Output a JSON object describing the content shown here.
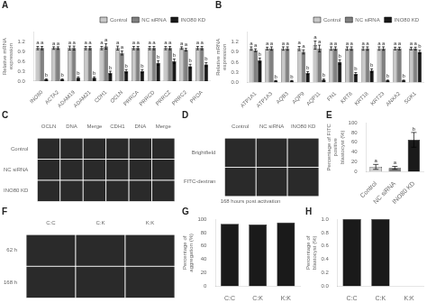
{
  "chart_data": [
    {
      "type": "bar",
      "title": "A",
      "categories": [
        "INO80",
        "ACTA2",
        "ADAM19",
        "ADAM21",
        "CDH1",
        "OCLN",
        "PRRCA",
        "PRRCD",
        "PRRCZ",
        "PRRC2",
        "PROA"
      ],
      "series": [
        {
          "name": "Control",
          "color": "#c8c8c8",
          "values": [
            1.0,
            1.0,
            1.0,
            1.0,
            1.0,
            1.0,
            1.0,
            1.0,
            1.0,
            1.0,
            1.0
          ],
          "errors": [
            0.05,
            0.04,
            0.06,
            0.05,
            0.05,
            0.06,
            0.05,
            0.05,
            0.05,
            0.04,
            0.05
          ],
          "annotations": [
            "a",
            "a",
            "a",
            "a",
            "a",
            "a",
            "a",
            "a",
            "a",
            "a",
            "a"
          ]
        },
        {
          "name": "NC siRNA",
          "color": "#808080",
          "values": [
            1.0,
            1.0,
            1.0,
            1.0,
            1.05,
            0.85,
            1.0,
            1.0,
            1.0,
            0.95,
            1.0
          ],
          "errors": [
            0.05,
            0.04,
            0.06,
            0.05,
            0.08,
            0.06,
            0.05,
            0.05,
            0.05,
            0.04,
            0.05
          ],
          "annotations": [
            "a",
            "a",
            "a",
            "a",
            "a",
            "a",
            "a",
            "a",
            "a",
            "a",
            "a"
          ]
        },
        {
          "name": "INO80 KD",
          "color": "#1a1a1a",
          "values": [
            0.05,
            0.05,
            0.1,
            0.1,
            0.25,
            0.3,
            0.3,
            0.55,
            0.6,
            0.45,
            0.5
          ],
          "errors": [
            0.02,
            0.02,
            0.03,
            0.03,
            0.05,
            0.05,
            0.05,
            0.07,
            0.07,
            0.06,
            0.06
          ],
          "annotations": [
            "b",
            "b",
            "b",
            "b",
            "b",
            "b",
            "b",
            "b",
            "b",
            "b",
            "b"
          ]
        }
      ],
      "ylabel": "Relative mRNA expression",
      "ylim": [
        0,
        1.5
      ],
      "yticks": [
        {
          "value": 0,
          "label": "0.0"
        },
        0.3,
        0.6,
        0.9,
        1.2
      ],
      "grid": false,
      "legend": "upper right"
    },
    {
      "type": "bar",
      "title": "B",
      "categories": [
        "ATP1A1",
        "ATP1A3",
        "AQB3",
        "AQP9",
        "AQP11",
        "FN1",
        "KRT8",
        "KRT18",
        "KRT23",
        "ANXA2",
        "SGK1"
      ],
      "series": [
        {
          "name": "Control",
          "color": "#c8c8c8",
          "values": [
            1.0,
            1.0,
            1.0,
            1.0,
            1.1,
            1.0,
            1.0,
            1.0,
            1.0,
            1.0,
            1.0
          ],
          "errors": [
            0.05,
            0.04,
            0.05,
            0.06,
            0.12,
            0.05,
            0.05,
            0.05,
            0.05,
            0.04,
            0.04
          ],
          "annotations": [
            "a",
            "a",
            "a",
            "a",
            "a",
            "a",
            "a",
            "a",
            "a",
            "a",
            "a"
          ]
        },
        {
          "name": "NC siRNA",
          "color": "#808080",
          "values": [
            0.95,
            1.0,
            1.0,
            0.9,
            1.0,
            1.0,
            1.0,
            1.0,
            1.0,
            1.0,
            1.0
          ],
          "errors": [
            0.04,
            0.05,
            0.05,
            0.06,
            0.1,
            0.05,
            0.05,
            0.05,
            0.05,
            0.04,
            0.04
          ],
          "annotations": [
            "a",
            "a",
            "a",
            "a",
            "a",
            "a",
            "a",
            "a",
            "a",
            "a",
            "a"
          ]
        },
        {
          "name": "INO80 KD",
          "color": "#1a1a1a",
          "values": [
            0.65,
            0.05,
            0.05,
            0.28,
            0.08,
            0.6,
            0.25,
            0.35,
            0.06,
            0.06,
            0.9
          ],
          "errors": [
            0.07,
            0.01,
            0.01,
            0.04,
            0.02,
            0.07,
            0.04,
            0.05,
            0.01,
            0.01,
            0.05
          ],
          "annotations": [
            "b",
            "b",
            "b",
            "b",
            "b",
            "b",
            "b",
            "b",
            "b",
            "b",
            "b"
          ]
        }
      ],
      "ylabel": "Relative mRNA expression",
      "ylim": [
        0,
        1.5
      ],
      "yticks": [
        {
          "value": 0,
          "label": "0.0"
        },
        0.3,
        0.6,
        0.9,
        1.2
      ],
      "grid": false,
      "legend": "upper right"
    },
    {
      "type": "image",
      "title": "C",
      "categories": [
        "OCLN",
        "DNA",
        "Merge",
        "CDH1",
        "DNA",
        "Merge"
      ],
      "annotations": [
        "Control",
        "NC siRNA",
        "INO80 KD"
      ]
    },
    {
      "type": "image",
      "title": "D",
      "categories": [
        "Control",
        "NC siRNA",
        "INO80 KD"
      ],
      "annotations": [
        "Brightfield",
        "FITC-dextran"
      ],
      "subtitle": "168 hours post activation"
    },
    {
      "type": "bar",
      "title": "E",
      "categories": [
        "Control",
        "NC siRNA",
        "INO80 KD"
      ],
      "values": [
        10,
        8,
        65
      ],
      "errors": [
        5,
        3,
        15
      ],
      "annotations": [
        "a",
        "a",
        "b"
      ],
      "colors": [
        "#d3d3d3",
        "#808080",
        "#1a1a1a"
      ],
      "ylabel": "Percentage of FITC positive\nblastocyst (%)",
      "ylim": [
        0,
        100
      ],
      "yticks": [
        0,
        20,
        40,
        60,
        80,
        100
      ],
      "grid": false
    },
    {
      "type": "image",
      "title": "F",
      "categories": [
        "C:C",
        "C:K",
        "K:K"
      ],
      "annotations": [
        "62 h",
        "168 h"
      ]
    },
    {
      "type": "bar",
      "title": "G",
      "categories": [
        "C:C",
        "C:K",
        "K:K"
      ],
      "values": [
        93,
        92,
        95
      ],
      "color": "#1a1a1a",
      "ylabel": "Percentage of aggregation (%)",
      "ylim": [
        0,
        100
      ],
      "yticks": [
        0,
        20,
        40,
        60,
        80,
        100
      ],
      "grid": false
    },
    {
      "type": "bar",
      "title": "H",
      "categories": [
        "C:C",
        "C:K",
        "K:K"
      ],
      "values": [
        1.0,
        1.0,
        0.0
      ],
      "color": "#1a1a1a",
      "ylabel": "Percentage of blastocyst (%)",
      "ylim": [
        0,
        1
      ],
      "yticks": [
        {
          "value": 0,
          "label": "0.0"
        },
        0.2,
        0.4,
        0.6,
        0.8,
        {
          "value": 1.0,
          "label": "1.0"
        }
      ],
      "grid": false
    }
  ]
}
